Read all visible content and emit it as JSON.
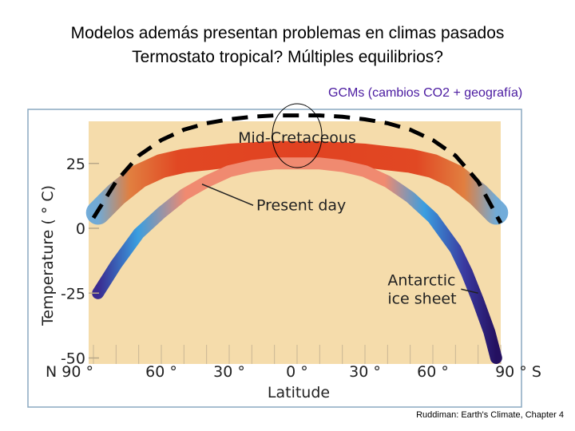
{
  "slide": {
    "title_line1": "Modelos además presentan problemas en climas pasados",
    "title_line2": "Termostato tropical? Múltiples equilibrios?",
    "gcm_label": "GCMs (cambios CO2 + geografía)",
    "credit": "Ruddiman: Earth's Climate, Chapter 4"
  },
  "chart_data": {
    "type": "line",
    "xlabel": "Latitude",
    "ylabel": "Temperature ( ° C)",
    "xlim": [
      -90,
      90
    ],
    "ylim": [
      -52,
      45
    ],
    "x_ticks": [
      -90,
      -60,
      -30,
      0,
      30,
      60,
      90
    ],
    "x_tick_labels": [
      "N 90 °",
      "60 °",
      "30 °",
      "0 °",
      "30 °",
      "60 °",
      "90 ° S"
    ],
    "y_ticks": [
      25,
      0,
      -25,
      -50
    ],
    "y_tick_labels": [
      "25",
      "0",
      "-25",
      "-50"
    ],
    "colors": {
      "background": "#f5dcab",
      "warm": "#e0401c",
      "present": "#f08a70",
      "cold": "#3a9ee0",
      "polar": "#2a1470",
      "gcm_line": "#000000",
      "frame": "#8aa8c0"
    },
    "series": [
      {
        "name": "Mid-Cretaceous",
        "x": [
          -88,
          -80,
          -70,
          -60,
          -50,
          -40,
          -30,
          -20,
          -10,
          0,
          10,
          20,
          30,
          40,
          50,
          60,
          70,
          80,
          88
        ],
        "y": [
          6,
          13,
          20,
          24,
          26,
          27,
          28,
          28.5,
          29,
          29,
          29,
          28.5,
          28,
          27,
          26,
          24,
          20,
          13,
          6
        ]
      },
      {
        "name": "Present day",
        "x": [
          -88,
          -80,
          -70,
          -60,
          -50,
          -40,
          -30,
          -20,
          -10,
          0,
          10,
          20,
          30,
          40,
          50,
          60,
          70,
          75,
          80,
          85,
          88
        ],
        "y": [
          -25,
          -14,
          -2,
          6,
          13,
          18,
          22,
          24,
          25,
          25,
          25,
          24,
          22,
          18,
          12,
          4,
          -8,
          -17,
          -28,
          -40,
          -50
        ]
      },
      {
        "name": "GCMs",
        "x": [
          -90,
          -80,
          -70,
          -60,
          -50,
          -40,
          -30,
          -20,
          -10,
          0,
          10,
          20,
          30,
          40,
          50,
          60,
          70,
          80,
          90
        ],
        "y": [
          4,
          18,
          28,
          34,
          38,
          40.5,
          42,
          43,
          43.5,
          43.5,
          43.5,
          43,
          42,
          40.5,
          38,
          34,
          28,
          18,
          2
        ]
      }
    ],
    "annotations": [
      {
        "text": "Mid-Cretaceous",
        "x": 0,
        "y": 33
      },
      {
        "text": "Present day",
        "x": -18,
        "y": 7,
        "arrow_to": [
          -42,
          17
        ]
      },
      {
        "text": "Antarctic",
        "x": 40,
        "y": -22
      },
      {
        "text": "ice sheet",
        "x": 40,
        "y": -29,
        "arrow_to": [
          80,
          -25
        ]
      }
    ]
  }
}
